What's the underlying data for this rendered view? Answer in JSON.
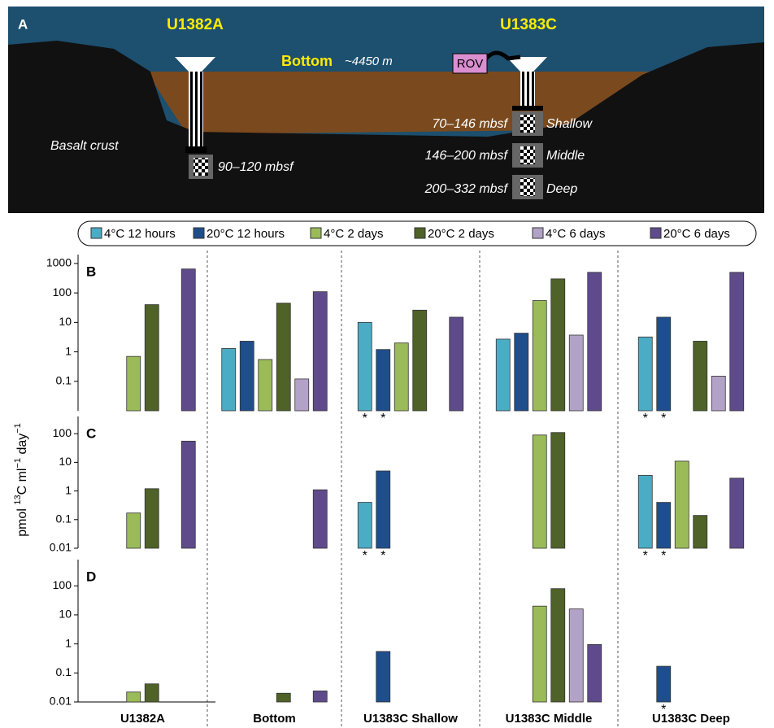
{
  "diagram": {
    "label": "A",
    "sites": [
      "U1382A",
      "U1383C"
    ],
    "bottom": "Bottom",
    "depth": "~4450 m",
    "rov": "ROV",
    "basalt": "Basalt crust",
    "u1382a_interval": "90–120 mbsf",
    "u1383c_intervals": [
      {
        "depth": "70–146 mbsf",
        "name": "Shallow"
      },
      {
        "depth": "146–200 mbsf",
        "name": "Middle"
      },
      {
        "depth": "200–332 mbsf",
        "name": "Deep"
      }
    ]
  },
  "chart_data": {
    "type": "bar",
    "log_scale": true,
    "categories": [
      "U1382A",
      "Bottom",
      "U1383C Shallow",
      "U1383C Middle",
      "U1383C Deep"
    ],
    "series": [
      {
        "name": "4°C 12 hours",
        "color": "#4bacc6"
      },
      {
        "name": "20°C 12 hours",
        "color": "#1f4e8c"
      },
      {
        "name": "4°C 2 days",
        "color": "#9bbb59"
      },
      {
        "name": "20°C 2 days",
        "color": "#4f6228"
      },
      {
        "name": "4°C 6 days",
        "color": "#b3a2c7"
      },
      {
        "name": "20°C 6 days",
        "color": "#5f4b8b"
      }
    ],
    "ylabel": [
      {
        "text": "pmol "
      },
      {
        "text": "13",
        "sup": true
      },
      {
        "text": "C ml"
      },
      {
        "text": "−1",
        "sup": true
      },
      {
        "text": " day"
      },
      {
        "text": "−1",
        "sup": true
      }
    ],
    "panels": [
      {
        "label": "B",
        "ylim": [
          0.01,
          2000
        ],
        "yticks": [
          0.1,
          1,
          10,
          100,
          1000
        ],
        "values": [
          [
            null,
            1.3,
            10,
            2.7,
            3.2
          ],
          [
            null,
            2.3,
            1.2,
            4.3,
            15
          ],
          [
            0.7,
            0.55,
            2,
            55,
            null
          ],
          [
            40,
            45,
            26,
            300,
            2.3
          ],
          [
            null,
            0.12,
            null,
            3.7,
            0.15
          ],
          [
            650,
            110,
            15,
            500,
            500
          ]
        ],
        "asterisks": [
          {
            "text": "*",
            "group": 2,
            "series": 0
          },
          {
            "text": "*",
            "group": 2,
            "series": 1
          },
          {
            "text": "*",
            "group": 4,
            "series": 0
          },
          {
            "text": "*",
            "group": 4,
            "series": 1
          }
        ]
      },
      {
        "label": "C",
        "ylim": [
          0.01,
          400
        ],
        "yticks": [
          0.01,
          0.1,
          1,
          10,
          100
        ],
        "values": [
          [
            null,
            null,
            0.4,
            null,
            3.5
          ],
          [
            null,
            null,
            5,
            null,
            0.4
          ],
          [
            0.17,
            null,
            null,
            90,
            11
          ],
          [
            1.2,
            null,
            null,
            110,
            0.14
          ],
          [
            null,
            null,
            null,
            null,
            null
          ],
          [
            55,
            1.1,
            null,
            null,
            2.8
          ]
        ],
        "asterisks": [
          {
            "text": "*",
            "group": 2,
            "series": 0
          },
          {
            "text": "*",
            "group": 2,
            "series": 1
          },
          {
            "text": "*",
            "group": 4,
            "series": 0
          },
          {
            "text": "*",
            "group": 4,
            "series": 1
          }
        ]
      },
      {
        "label": "D",
        "ylim": [
          0.01,
          800
        ],
        "yticks": [
          0.01,
          0.1,
          1,
          10,
          100
        ],
        "values": [
          [
            null,
            null,
            null,
            null,
            null
          ],
          [
            null,
            null,
            0.55,
            null,
            0.17
          ],
          [
            0.022,
            null,
            null,
            20,
            null
          ],
          [
            0.042,
            0.02,
            null,
            80,
            null
          ],
          [
            null,
            null,
            null,
            16,
            null
          ],
          [
            null,
            0.024,
            null,
            0.95,
            null
          ]
        ],
        "asterisks": [
          {
            "text": "*",
            "group": 4,
            "series": 1
          }
        ]
      }
    ]
  }
}
